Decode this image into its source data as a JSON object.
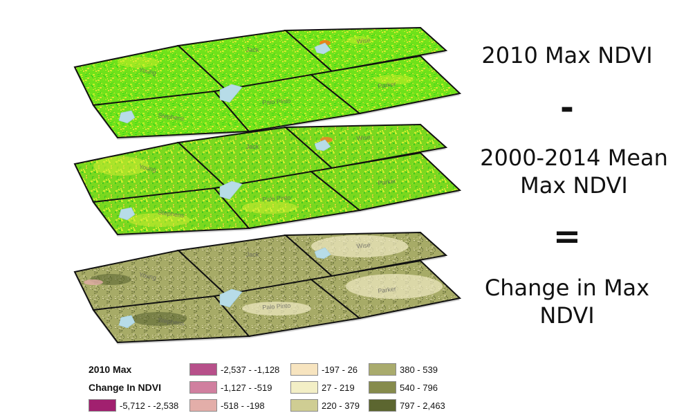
{
  "equation": {
    "top": "2010 Max NDVI",
    "minus": "-",
    "middle_line1": "2000-2014 Mean",
    "middle_line2": "Max NDVI",
    "equals": "=",
    "bottom_line1": "Change in Max",
    "bottom_line2": "NDVI"
  },
  "map_layers": [
    {
      "name": "2010 Max NDVI",
      "fill": "#6fe21a"
    },
    {
      "name": "2000-2014 Mean Max NDVI",
      "fill": "#7ad81f"
    },
    {
      "name": "Change in Max NDVI",
      "fill": "#a7ab67"
    }
  ],
  "county_labels": [
    "Young",
    "Jack",
    "Wise",
    "Stephens",
    "Palo Pinto",
    "Parker"
  ],
  "legend": {
    "title_line1": "2010 Max",
    "title_line2": "Change In NDVI",
    "classes": [
      {
        "label": "-5,712 - -2,538",
        "color": "#a1206f"
      },
      {
        "label": "-2,537 - -1,128",
        "color": "#b7508a"
      },
      {
        "label": "-1,127 - -519",
        "color": "#d07f9f"
      },
      {
        "label": "-518 - -198",
        "color": "#e3aea9"
      },
      {
        "label": "-197 - 26",
        "color": "#f7e4bf"
      },
      {
        "label": "27 - 219",
        "color": "#f3efc6"
      },
      {
        "label": "220 - 379",
        "color": "#cfcd93"
      },
      {
        "label": "380 - 539",
        "color": "#a9ab6d"
      },
      {
        "label": "540 - 796",
        "color": "#868b4c"
      },
      {
        "label": "797 - 2,463",
        "color": "#5c6630"
      }
    ]
  }
}
